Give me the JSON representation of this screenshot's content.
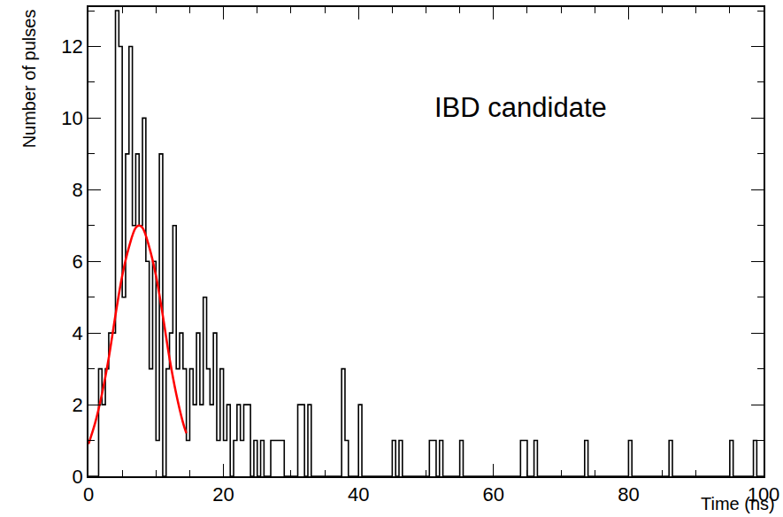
{
  "chart_data": {
    "type": "histogram",
    "annotations": [
      "IBD candidate"
    ],
    "x_label": "Time (ns)",
    "y_label": "Number of pulses",
    "color": "#000000",
    "bins": [
      0,
      0.5,
      1,
      1.5,
      2,
      2.5,
      3,
      3.5,
      4,
      4.5,
      5,
      5.5,
      6,
      6.5,
      7,
      7.5,
      8,
      8.5,
      9,
      9.5,
      10,
      10.5,
      11,
      11.5,
      12,
      12.5,
      13,
      13.5,
      14,
      14.5,
      15,
      15.5,
      16,
      16.5,
      17,
      17.5,
      18,
      18.5,
      19,
      19.5,
      20,
      20.5,
      21,
      21.5,
      22,
      22.5,
      23,
      23.5,
      24,
      24.5,
      25,
      25.5,
      26,
      26.5,
      27,
      27.5,
      28,
      28.5,
      29,
      29.5,
      30,
      30.5,
      31,
      31.5,
      32,
      32.5,
      33,
      33.5,
      34,
      34.5,
      35,
      35.5,
      36,
      36.5,
      37,
      37.5,
      38,
      38.5,
      39,
      39.5,
      40,
      40.5,
      41,
      41.5,
      42,
      42.5,
      43,
      43.5,
      44,
      44.5,
      45,
      45.5,
      46,
      46.5,
      47,
      47.5,
      48,
      48.5,
      49,
      49.5,
      50,
      50.5,
      51,
      51.5,
      52,
      52.5,
      53,
      53.5,
      54,
      54.5,
      55,
      55.5,
      56,
      56.5,
      57,
      57.5,
      58,
      58.5,
      59,
      59.5,
      60,
      60.5,
      61,
      61.5,
      62,
      62.5,
      63,
      63.5,
      64,
      64.5,
      65,
      65.5,
      66,
      66.5,
      67,
      67.5,
      68,
      68.5,
      69,
      69.5,
      70,
      70.5,
      71,
      71.5,
      72,
      72.5,
      73,
      73.5,
      74,
      74.5,
      75,
      75.5,
      76,
      76.5,
      77,
      77.5,
      78,
      78.5,
      79,
      79.5,
      80,
      80.5,
      81,
      81.5,
      82,
      82.5,
      83,
      83.5,
      84,
      84.5,
      85,
      85.5,
      86,
      86.5,
      87,
      87.5,
      88,
      88.5,
      89,
      89.5,
      90,
      90.5,
      91,
      91.5,
      92,
      92.5,
      93,
      93.5,
      94,
      94.5,
      95,
      95.5,
      96,
      96.5,
      97,
      97.5,
      98,
      98.5,
      99,
      99.5,
      100
    ],
    "counts": [
      0,
      0,
      0,
      3,
      2,
      3,
      4,
      4,
      13,
      12,
      5,
      9,
      12,
      7,
      9,
      7,
      10,
      6,
      3,
      6,
      1,
      9,
      0,
      3,
      4,
      7,
      3,
      4,
      3,
      1,
      3,
      2,
      4,
      2,
      5,
      3,
      2,
      4,
      1,
      3,
      1,
      2,
      0,
      1,
      2,
      1,
      2,
      2,
      0,
      1,
      0,
      1,
      0,
      0,
      1,
      1,
      1,
      1,
      0,
      0,
      0,
      0,
      2,
      2,
      0,
      2,
      0,
      0,
      0,
      0,
      0,
      0,
      0,
      0,
      0,
      3,
      1,
      0,
      0,
      0,
      2,
      0,
      0,
      0,
      0,
      0,
      0,
      0,
      0,
      0,
      1,
      0,
      1,
      0,
      0,
      0,
      0,
      0,
      0,
      0,
      0,
      1,
      1,
      0,
      1,
      0,
      0,
      0,
      0,
      0,
      1,
      0,
      0,
      0,
      0,
      0,
      0,
      0,
      0,
      0,
      0,
      0,
      0,
      0,
      0,
      0,
      0,
      0,
      1,
      1,
      0,
      0,
      1,
      0,
      0,
      0,
      0,
      0,
      0,
      0,
      0,
      0,
      0,
      0,
      0,
      0,
      0,
      1,
      0,
      0,
      0,
      0,
      0,
      0,
      0,
      0,
      0,
      0,
      0,
      0,
      1,
      0,
      0,
      0,
      0,
      0,
      0,
      0,
      0,
      0,
      0,
      0,
      1,
      0,
      0,
      0,
      0,
      0,
      0,
      0,
      0,
      0,
      0,
      0,
      0,
      0,
      0,
      0,
      0,
      0,
      1,
      0,
      0,
      0,
      0,
      0,
      0,
      1,
      0,
      0
    ],
    "fit": {
      "type": "line",
      "color": "#ff0000",
      "x": [
        0,
        1,
        2,
        3,
        4,
        5,
        6,
        7,
        7.5,
        8,
        9,
        10,
        11,
        12,
        13,
        14,
        14.5
      ],
      "values": [
        0.9,
        1.5,
        2.3,
        3.3,
        4.5,
        5.6,
        6.4,
        6.94,
        7,
        6.94,
        6.4,
        5.6,
        4.5,
        3.3,
        2.3,
        1.5,
        1.2
      ]
    },
    "xlim": [
      0,
      100
    ],
    "xticks": [
      0,
      20,
      40,
      60,
      80,
      100
    ],
    "ylim": [
      0,
      13.1
    ],
    "yticks": [
      0,
      2,
      4,
      6,
      8,
      10,
      12
    ],
    "grid": false
  }
}
